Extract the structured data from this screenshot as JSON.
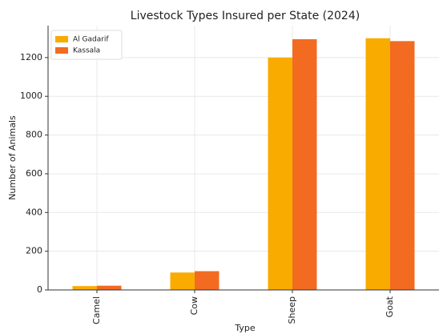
{
  "chart_data": {
    "type": "bar",
    "title": "Livestock Types Insured per State (2024)",
    "x_label": "Type",
    "y_label": "Number of Animals",
    "categories": [
      "Camel",
      "Cow",
      "Sheep",
      "Goat"
    ],
    "series": [
      {
        "name": "Al Gadarif",
        "color": "#f9ab00",
        "values": [
          20,
          90,
          1200,
          1300
        ]
      },
      {
        "name": "Kassala",
        "color": "#f26b21",
        "values": [
          22,
          97,
          1295,
          1285
        ]
      }
    ],
    "ylim": [
      0,
      1365
    ],
    "yticks": [
      0,
      200,
      400,
      600,
      800,
      1000,
      1200
    ],
    "grid": true,
    "legend": "upper left"
  }
}
